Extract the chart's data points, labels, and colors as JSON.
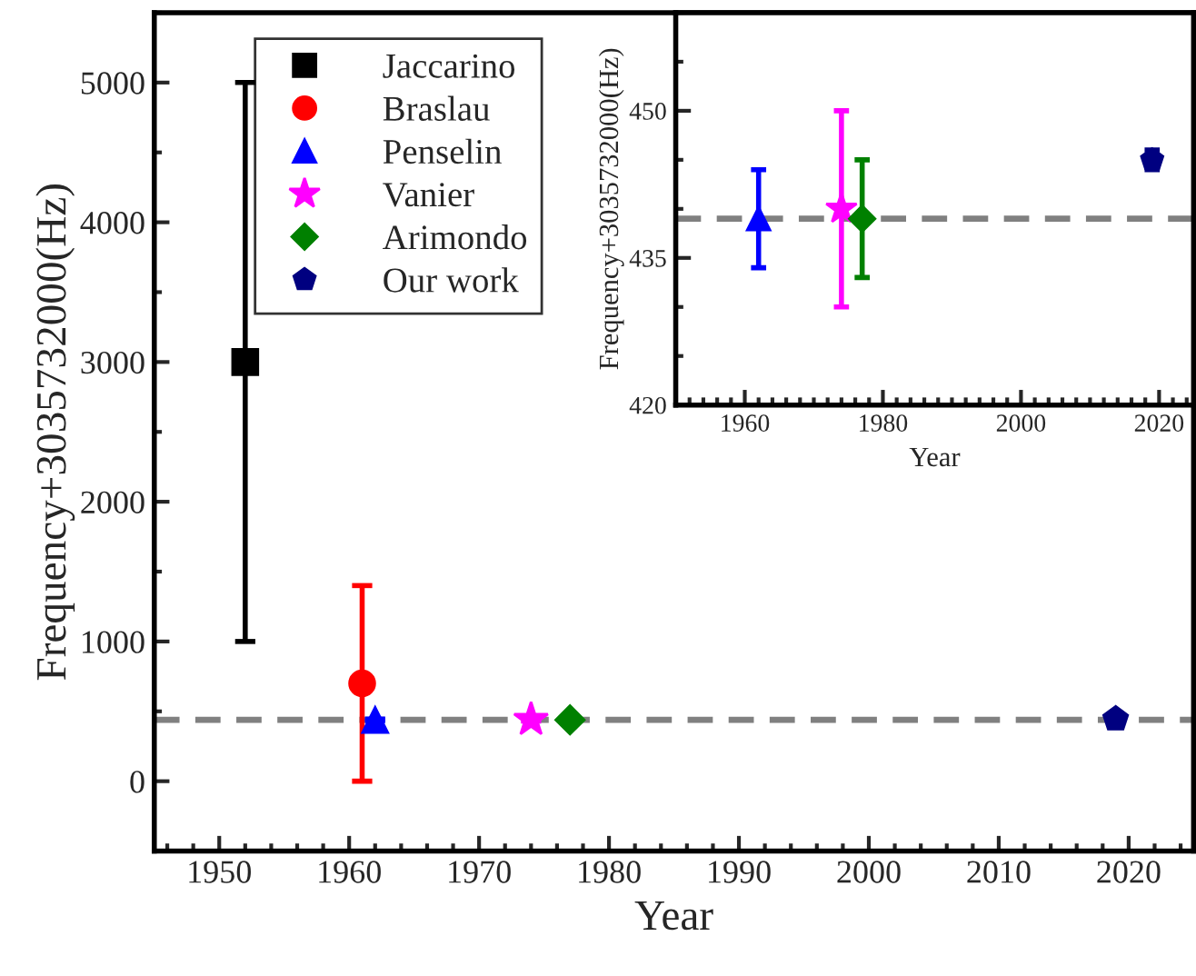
{
  "chart_data": [
    {
      "type": "scatter",
      "xlabel": "Year",
      "ylabel": "Frequency+3035732000(Hz)",
      "xlim": [
        1945,
        2025
      ],
      "xticks": [
        1950,
        1960,
        1970,
        1980,
        1990,
        2000,
        2010,
        2020
      ],
      "ylim": [
        -500,
        5500
      ],
      "yticks": [
        0,
        1000,
        2000,
        3000,
        4000,
        5000
      ],
      "legend": "top left",
      "grid": false,
      "series": [
        {
          "name": "Jaccarino",
          "color": "#000000",
          "marker": "square",
          "x": [
            1952
          ],
          "values": [
            3000
          ],
          "errors": [
            2000
          ]
        },
        {
          "name": "Braslau",
          "color": "#ff0000",
          "marker": "circle",
          "x": [
            1961
          ],
          "values": [
            700
          ],
          "errors": [
            700
          ]
        },
        {
          "name": "Penselin",
          "color": "#0000ff",
          "marker": "triangle",
          "x": [
            1962
          ],
          "values": [
            439
          ],
          "errors": [
            5
          ]
        },
        {
          "name": "Vanier",
          "color": "#ff00ff",
          "marker": "star",
          "x": [
            1974
          ],
          "values": [
            440
          ],
          "errors": [
            10
          ]
        },
        {
          "name": "Arimondo",
          "color": "#008000",
          "marker": "diamond",
          "x": [
            1977
          ],
          "values": [
            439
          ],
          "errors": [
            6
          ]
        },
        {
          "name": "Our work",
          "color": "#000080",
          "x": [
            2019
          ],
          "values": [
            445
          ],
          "errors": [
            1
          ]
        }
      ],
      "ref_lines": [
        {
          "axis": "y",
          "value": 439,
          "color": "#808080",
          "line_style": "dashed"
        }
      ]
    },
    {
      "type": "scatter",
      "xlabel": "Year",
      "ylabel": "Frequency+3035732000(Hz)",
      "xlim": [
        1950,
        2025
      ],
      "xticks": [
        1960,
        1980,
        2000,
        2020
      ],
      "ylim": [
        420,
        460
      ],
      "yticks": [
        420,
        435,
        450
      ],
      "legend": false,
      "grid": false,
      "series": [
        {
          "color": "#0000ff",
          "marker": "triangle",
          "x": [
            1962
          ],
          "values": [
            439
          ],
          "errors": [
            5
          ]
        },
        {
          "color": "#ff00ff",
          "marker": "star",
          "x": [
            1974
          ],
          "values": [
            440
          ],
          "errors": [
            10
          ]
        },
        {
          "color": "#008000",
          "marker": "diamond",
          "x": [
            1977
          ],
          "values": [
            439
          ],
          "errors": [
            6
          ]
        },
        {
          "color": "#000080",
          "x": [
            2019
          ],
          "values": [
            445
          ],
          "errors": [
            1
          ]
        }
      ],
      "ref_lines": [
        {
          "axis": "y",
          "value": 439,
          "color": "#808080",
          "line_style": "dashed"
        }
      ]
    }
  ]
}
